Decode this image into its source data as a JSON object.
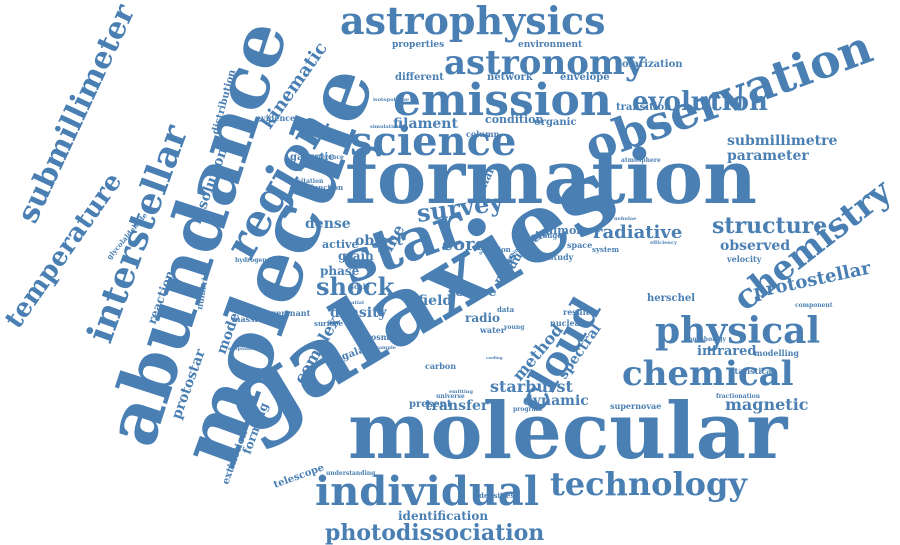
{
  "colors": {
    "word": "#4a7fb3",
    "background": "#ffffff"
  },
  "words": [
    "galaxies",
    "molecular",
    "molecule",
    "formation",
    "abundance",
    "observation",
    "emission",
    "astrophysics",
    "astronomy",
    "star",
    "science",
    "region",
    "individual",
    "technology",
    "interstellar",
    "chemistry",
    "physical",
    "chemical",
    "cloud",
    "submillimeter",
    "temperature",
    "evolution",
    "photodissociation",
    "survey",
    "shock",
    "protostellar",
    "structure",
    "kinematic",
    "radiative",
    "core",
    "magnetic",
    "filament",
    "dynamic",
    "starburst",
    "transfer",
    "identification",
    "method",
    "submillimetre",
    "parameter",
    "observed",
    "infrared",
    "spectral",
    "density",
    "dense",
    "object",
    "resolution",
    "model",
    "protostar",
    "reaction",
    "forming",
    "complex",
    "line",
    "field",
    "source",
    "radio",
    "grain",
    "phase",
    "active",
    "dust",
    "ratio",
    "mass",
    "stellar",
    "galactic",
    "distribution",
    "extinction",
    "telescope",
    "polarization",
    "environment",
    "properties",
    "network",
    "different",
    "envelope",
    "transition",
    "condition",
    "organic",
    "column",
    "velocity",
    "present",
    "supernovae",
    "herschel",
    "magnetic",
    "fractionation",
    "modelling",
    "statistical",
    "morphology",
    "evidence",
    "glycolaldehyde",
    "hydrogen",
    "remnant",
    "massive",
    "numerical",
    "galaxy",
    "water",
    "carbon",
    "cosmic",
    "surface",
    "almon",
    "study",
    "space",
    "system",
    "result",
    "nuclear",
    "densities",
    "understanding",
    "universe",
    "atmosphere",
    "orion",
    "data",
    "young",
    "program",
    "component",
    "efficiency",
    "nebulae",
    "range",
    "scale",
    "function",
    "inference",
    "population",
    "exoplanets",
    "isotopologue",
    "simulation",
    "excitation",
    "compact",
    "central",
    "outflow",
    "mapping",
    "spatial",
    "sample",
    "emitting",
    "cooling"
  ]
}
